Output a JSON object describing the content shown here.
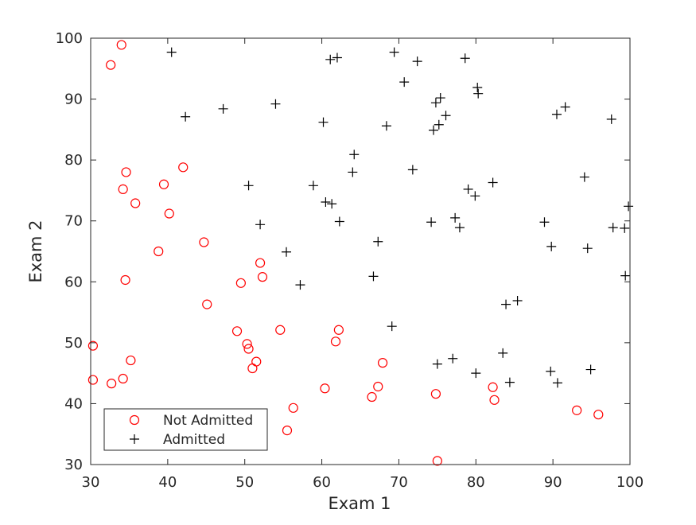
{
  "chart_data": {
    "type": "scatter",
    "xlabel": "Exam 1",
    "ylabel": "Exam 2",
    "xlim": [
      30,
      100
    ],
    "ylim": [
      30,
      100
    ],
    "xticks": [
      "30",
      "40",
      "50",
      "60",
      "70",
      "80",
      "90",
      "100"
    ],
    "yticks": [
      "30",
      "40",
      "50",
      "60",
      "70",
      "80",
      "90",
      "100"
    ],
    "grid": false,
    "legend_position": "bottom-left",
    "series": [
      {
        "name": "Not Admitted",
        "marker": "circle",
        "color": "#ff0000",
        "x": [
          34.0,
          32.6,
          30.3,
          35.2,
          34.2,
          34.5,
          34.6,
          34.2,
          35.8,
          30.3,
          32.7,
          38.8,
          39.5,
          40.2,
          42.0,
          44.7,
          45.1,
          49.0,
          49.5,
          50.3,
          50.5,
          51.0,
          51.5,
          52.0,
          52.3,
          54.6,
          55.5,
          56.3,
          60.4,
          61.8,
          62.2,
          66.5,
          67.3,
          67.9,
          74.8,
          75.0,
          82.2,
          82.4,
          93.1,
          95.9
        ],
        "y": [
          98.9,
          95.6,
          49.5,
          47.1,
          44.1,
          60.3,
          78.0,
          75.2,
          72.9,
          43.9,
          43.3,
          65.0,
          76.0,
          71.2,
          78.8,
          66.5,
          56.3,
          51.9,
          59.8,
          49.8,
          49.0,
          45.8,
          46.9,
          63.1,
          60.8,
          52.1,
          35.6,
          39.3,
          42.5,
          50.2,
          52.1,
          41.1,
          42.8,
          46.7,
          41.6,
          30.6,
          42.7,
          40.6,
          38.9,
          38.2
        ]
      },
      {
        "name": "Admitted",
        "marker": "plus",
        "color": "#000000",
        "x": [
          40.5,
          42.3,
          47.2,
          50.5,
          52.0,
          54.0,
          55.4,
          57.2,
          58.9,
          60.2,
          60.5,
          61.1,
          61.3,
          62.0,
          62.3,
          64.0,
          64.2,
          66.7,
          67.3,
          68.4,
          69.1,
          69.4,
          70.7,
          71.8,
          72.4,
          74.2,
          74.5,
          74.8,
          75.0,
          75.2,
          75.4,
          76.1,
          77.0,
          77.3,
          77.9,
          78.6,
          79.0,
          79.9,
          80.0,
          80.2,
          80.3,
          82.2,
          83.5,
          83.9,
          84.4,
          85.4,
          88.9,
          89.7,
          89.8,
          90.5,
          90.6,
          91.6,
          94.1,
          94.5,
          94.9,
          97.6,
          97.8,
          99.3,
          99.4,
          99.8
        ],
        "y": [
          97.7,
          87.1,
          88.4,
          75.8,
          69.4,
          89.2,
          64.9,
          59.5,
          75.8,
          86.2,
          73.1,
          96.5,
          72.8,
          96.8,
          69.9,
          78.0,
          80.9,
          60.9,
          66.6,
          85.6,
          52.7,
          97.7,
          92.8,
          78.4,
          96.2,
          69.8,
          84.9,
          89.4,
          46.5,
          85.8,
          90.2,
          87.3,
          47.4,
          70.5,
          68.9,
          96.7,
          75.2,
          74.1,
          45.0,
          91.9,
          90.9,
          76.3,
          48.3,
          56.3,
          43.5,
          56.9,
          69.8,
          45.3,
          65.8,
          87.5,
          43.4,
          88.7,
          77.2,
          65.5,
          45.6,
          86.7,
          68.9,
          68.8,
          61.0,
          72.4
        ]
      }
    ]
  }
}
